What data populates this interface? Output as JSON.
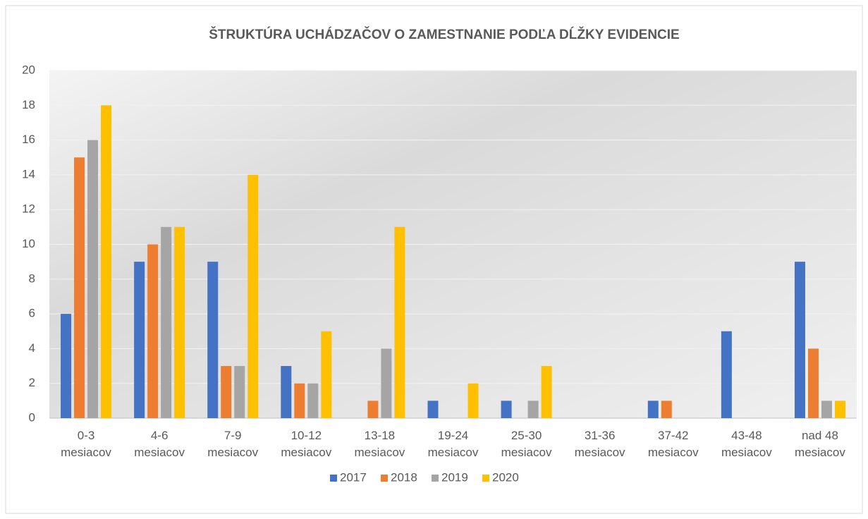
{
  "chart_data": {
    "type": "bar",
    "title": "ŠTRUKTÚRA UCHÁDZAČOV O ZAMESTNANIE PODĽA DĹŽKY EVIDENCIE",
    "categories": [
      "0-3 mesiacov",
      "4-6 mesiacov",
      "7-9 mesiacov",
      "10-12 mesiacov",
      "13-18 mesiacov",
      "19-24 mesiacov",
      "25-30 mesiacov",
      "31-36 mesiacov",
      "37-42 mesiacov",
      "43-48 mesiacov",
      "nad 48 mesiacov"
    ],
    "series": [
      {
        "name": "2017",
        "color": "#4472c4",
        "values": [
          6,
          9,
          9,
          3,
          0,
          1,
          1,
          0,
          1,
          5,
          9
        ]
      },
      {
        "name": "2018",
        "color": "#ed7d31",
        "values": [
          15,
          10,
          3,
          2,
          1,
          0,
          0,
          0,
          1,
          0,
          4
        ]
      },
      {
        "name": "2019",
        "color": "#a5a5a5",
        "values": [
          16,
          11,
          3,
          2,
          4,
          0,
          1,
          0,
          0,
          0,
          1
        ]
      },
      {
        "name": "2020",
        "color": "#ffc000",
        "values": [
          18,
          11,
          14,
          5,
          11,
          2,
          3,
          0,
          0,
          0,
          1
        ]
      }
    ],
    "ylim": [
      0,
      20
    ],
    "yticks": [
      0,
      2,
      4,
      6,
      8,
      10,
      12,
      14,
      16,
      18,
      20
    ],
    "grid": true,
    "legend": "bottom"
  }
}
